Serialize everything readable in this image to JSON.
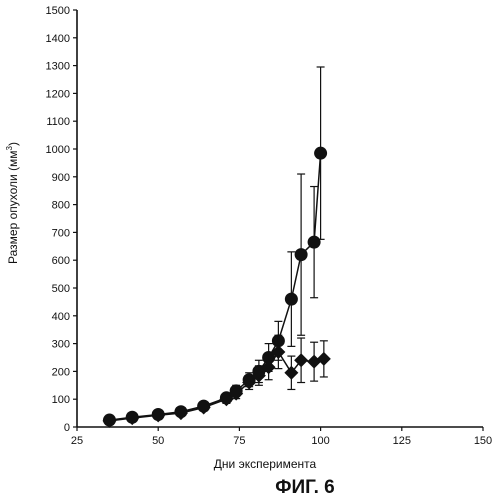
{
  "chart_data": {
    "type": "line",
    "xlabel": "Дни эксперимента",
    "ylabel_main": "Размер опухоли (мм",
    "ylabel_sup": "3",
    "ylabel_close": ")",
    "caption": "ФИГ. 6",
    "xlim": [
      25,
      150
    ],
    "ylim": [
      0,
      1500
    ],
    "x_ticks": [
      25,
      50,
      75,
      100,
      125,
      150
    ],
    "y_ticks": [
      0,
      100,
      200,
      300,
      400,
      500,
      600,
      700,
      800,
      900,
      1000,
      1100,
      1200,
      1300,
      1400,
      1500
    ],
    "grid": false,
    "series": [
      {
        "marker": "circle",
        "color": "#111111",
        "x": [
          35,
          42,
          50,
          57,
          64,
          71,
          74,
          78,
          81,
          84,
          87,
          91,
          94,
          98,
          100
        ],
        "y": [
          25,
          35,
          45,
          55,
          75,
          105,
          130,
          170,
          200,
          250,
          310,
          460,
          620,
          665,
          985
        ],
        "err": [
          8,
          8,
          10,
          10,
          12,
          15,
          20,
          25,
          40,
          50,
          70,
          170,
          290,
          200,
          310
        ]
      },
      {
        "marker": "diamond",
        "color": "#111111",
        "x": [
          35,
          42,
          50,
          57,
          64,
          71,
          74,
          78,
          81,
          84,
          87,
          91,
          94,
          98,
          101
        ],
        "y": [
          22,
          32,
          42,
          50,
          70,
          100,
          120,
          160,
          185,
          215,
          270,
          195,
          240,
          235,
          245
        ],
        "err": [
          6,
          8,
          8,
          10,
          12,
          15,
          18,
          25,
          35,
          45,
          60,
          60,
          80,
          70,
          65
        ]
      }
    ]
  }
}
